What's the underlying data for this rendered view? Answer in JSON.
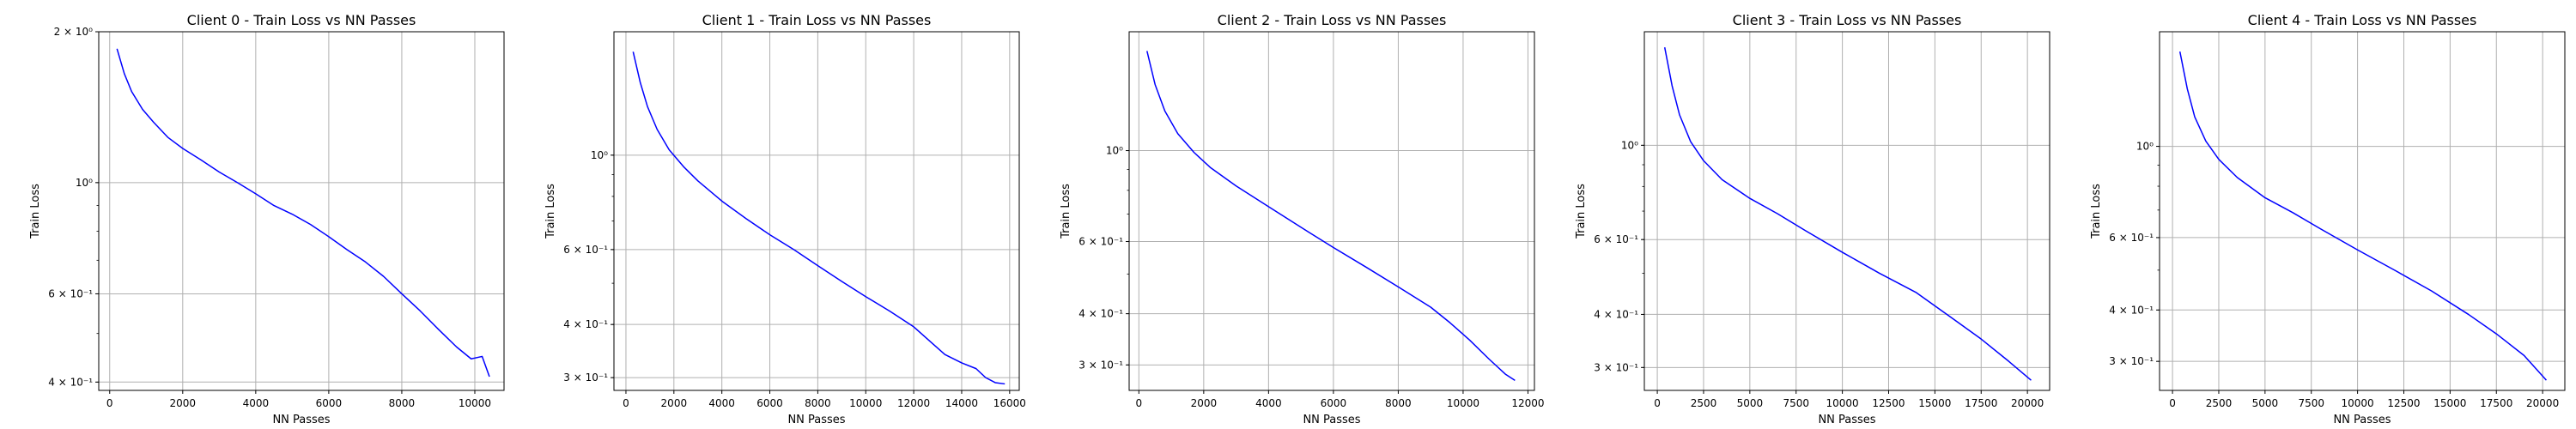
{
  "chart_data": [
    {
      "type": "line",
      "title": "Client 0 - Train Loss vs NN Passes",
      "xlabel": "NN Passes",
      "ylabel": "Train Loss",
      "yscale": "log",
      "grid": true,
      "xlim": [
        -300,
        10800
      ],
      "ylim": [
        0.385,
        2.0
      ],
      "xticks": [
        0,
        2000,
        4000,
        6000,
        8000,
        10000
      ],
      "xtick_labels": [
        "0",
        "2000",
        "4000",
        "6000",
        "8000",
        "10000"
      ],
      "yticks": [
        0.4,
        0.6,
        1.0,
        2.0
      ],
      "ytick_labels": [
        "4 × 10⁻¹",
        "6 × 10⁻¹",
        "10⁰",
        "2 × 10⁰"
      ],
      "line_color": "#0000ff",
      "series": [
        {
          "x": [
            200,
            400,
            600,
            900,
            1200,
            1600,
            2000,
            2500,
            3000,
            3500,
            4000,
            4500,
            5000,
            5500,
            6000,
            6500,
            7000,
            7500,
            8000,
            8500,
            9000,
            9500,
            9900,
            10200,
            10400
          ],
          "y": [
            1.85,
            1.65,
            1.52,
            1.4,
            1.32,
            1.23,
            1.17,
            1.11,
            1.05,
            1.0,
            0.95,
            0.9,
            0.865,
            0.825,
            0.78,
            0.735,
            0.695,
            0.65,
            0.6,
            0.555,
            0.51,
            0.47,
            0.445,
            0.45,
            0.41
          ]
        }
      ]
    },
    {
      "type": "line",
      "title": "Client 1 - Train Loss vs NN Passes",
      "xlabel": "NN Passes",
      "ylabel": "Train Loss",
      "yscale": "log",
      "grid": true,
      "xlim": [
        -500,
        16400
      ],
      "ylim": [
        0.28,
        1.95
      ],
      "xticks": [
        0,
        2000,
        4000,
        6000,
        8000,
        10000,
        12000,
        14000,
        16000
      ],
      "xtick_labels": [
        "0",
        "2000",
        "4000",
        "6000",
        "8000",
        "10000",
        "12000",
        "14000",
        "16000"
      ],
      "yticks": [
        0.3,
        0.4,
        0.6,
        1.0
      ],
      "ytick_labels": [
        "3 × 10⁻¹",
        "4 × 10⁻¹",
        "6 × 10⁻¹",
        "10⁰"
      ],
      "line_color": "#0000ff",
      "series": [
        {
          "x": [
            300,
            600,
            900,
            1300,
            1800,
            2400,
            3000,
            4000,
            5000,
            6000,
            7000,
            8000,
            9000,
            10000,
            11000,
            12000,
            12800,
            13300,
            14000,
            14600,
            15000,
            15400,
            15800
          ],
          "y": [
            1.75,
            1.48,
            1.3,
            1.15,
            1.03,
            0.94,
            0.87,
            0.78,
            0.71,
            0.65,
            0.6,
            0.55,
            0.505,
            0.465,
            0.43,
            0.395,
            0.36,
            0.34,
            0.325,
            0.315,
            0.3,
            0.292,
            0.29
          ]
        }
      ]
    },
    {
      "type": "line",
      "title": "Client 2 - Train Loss vs NN Passes",
      "xlabel": "NN Passes",
      "ylabel": "Train Loss",
      "yscale": "log",
      "grid": true,
      "xlim": [
        -300,
        12200
      ],
      "ylim": [
        0.26,
        1.95
      ],
      "xticks": [
        0,
        2000,
        4000,
        6000,
        8000,
        10000,
        12000
      ],
      "xtick_labels": [
        "0",
        "2000",
        "4000",
        "6000",
        "8000",
        "10000",
        "12000"
      ],
      "yticks": [
        0.3,
        0.4,
        0.6,
        1.0
      ],
      "ytick_labels": [
        "3 × 10⁻¹",
        "4 × 10⁻¹",
        "6 × 10⁻¹",
        "10⁰"
      ],
      "line_color": "#0000ff",
      "series": [
        {
          "x": [
            250,
            500,
            800,
            1200,
            1700,
            2200,
            3000,
            4000,
            5000,
            6000,
            7000,
            8000,
            9000,
            9600,
            10200,
            10800,
            11300,
            11600
          ],
          "y": [
            1.75,
            1.45,
            1.25,
            1.1,
            0.99,
            0.91,
            0.82,
            0.73,
            0.65,
            0.58,
            0.52,
            0.465,
            0.415,
            0.38,
            0.345,
            0.31,
            0.285,
            0.275
          ]
        }
      ]
    },
    {
      "type": "line",
      "title": "Client 3 - Train Loss vs NN Passes",
      "xlabel": "NN Passes",
      "ylabel": "Train Loss",
      "yscale": "log",
      "grid": true,
      "xlim": [
        -700,
        21200
      ],
      "ylim": [
        0.265,
        1.85
      ],
      "xticks": [
        0,
        2500,
        5000,
        7500,
        10000,
        12500,
        15000,
        17500,
        20000
      ],
      "xtick_labels": [
        "0",
        "2500",
        "5000",
        "7500",
        "10000",
        "12500",
        "15000",
        "17500",
        "20000"
      ],
      "yticks": [
        0.3,
        0.4,
        0.6,
        1.0
      ],
      "ytick_labels": [
        "3 × 10⁻¹",
        "4 × 10⁻¹",
        "6 × 10⁻¹",
        "10⁰"
      ],
      "line_color": "#0000ff",
      "series": [
        {
          "x": [
            400,
            800,
            1200,
            1800,
            2500,
            3500,
            5000,
            6500,
            8000,
            10000,
            12000,
            14000,
            16000,
            17500,
            19000,
            20200
          ],
          "y": [
            1.7,
            1.38,
            1.18,
            1.02,
            0.92,
            0.83,
            0.75,
            0.69,
            0.63,
            0.56,
            0.5,
            0.45,
            0.39,
            0.35,
            0.31,
            0.28
          ]
        }
      ]
    },
    {
      "type": "line",
      "title": "Client 4 - Train Loss vs NN Passes",
      "xlabel": "NN Passes",
      "ylabel": "Train Loss",
      "yscale": "log",
      "grid": true,
      "xlim": [
        -700,
        21200
      ],
      "ylim": [
        0.255,
        1.9
      ],
      "xticks": [
        0,
        2500,
        5000,
        7500,
        10000,
        12500,
        15000,
        17500,
        20000
      ],
      "xtick_labels": [
        "0",
        "2500",
        "5000",
        "7500",
        "10000",
        "12500",
        "15000",
        "17500",
        "20000"
      ],
      "yticks": [
        0.3,
        0.4,
        0.6,
        1.0
      ],
      "ytick_labels": [
        "3 × 10⁻¹",
        "4 × 10⁻¹",
        "6 × 10⁻¹",
        "10⁰"
      ],
      "line_color": "#0000ff",
      "series": [
        {
          "x": [
            400,
            800,
            1200,
            1800,
            2500,
            3500,
            5000,
            6500,
            8000,
            10000,
            12000,
            14000,
            16000,
            17500,
            19000,
            20200
          ],
          "y": [
            1.7,
            1.38,
            1.18,
            1.03,
            0.93,
            0.84,
            0.75,
            0.69,
            0.63,
            0.56,
            0.5,
            0.445,
            0.39,
            0.35,
            0.31,
            0.27
          ]
        }
      ]
    }
  ]
}
